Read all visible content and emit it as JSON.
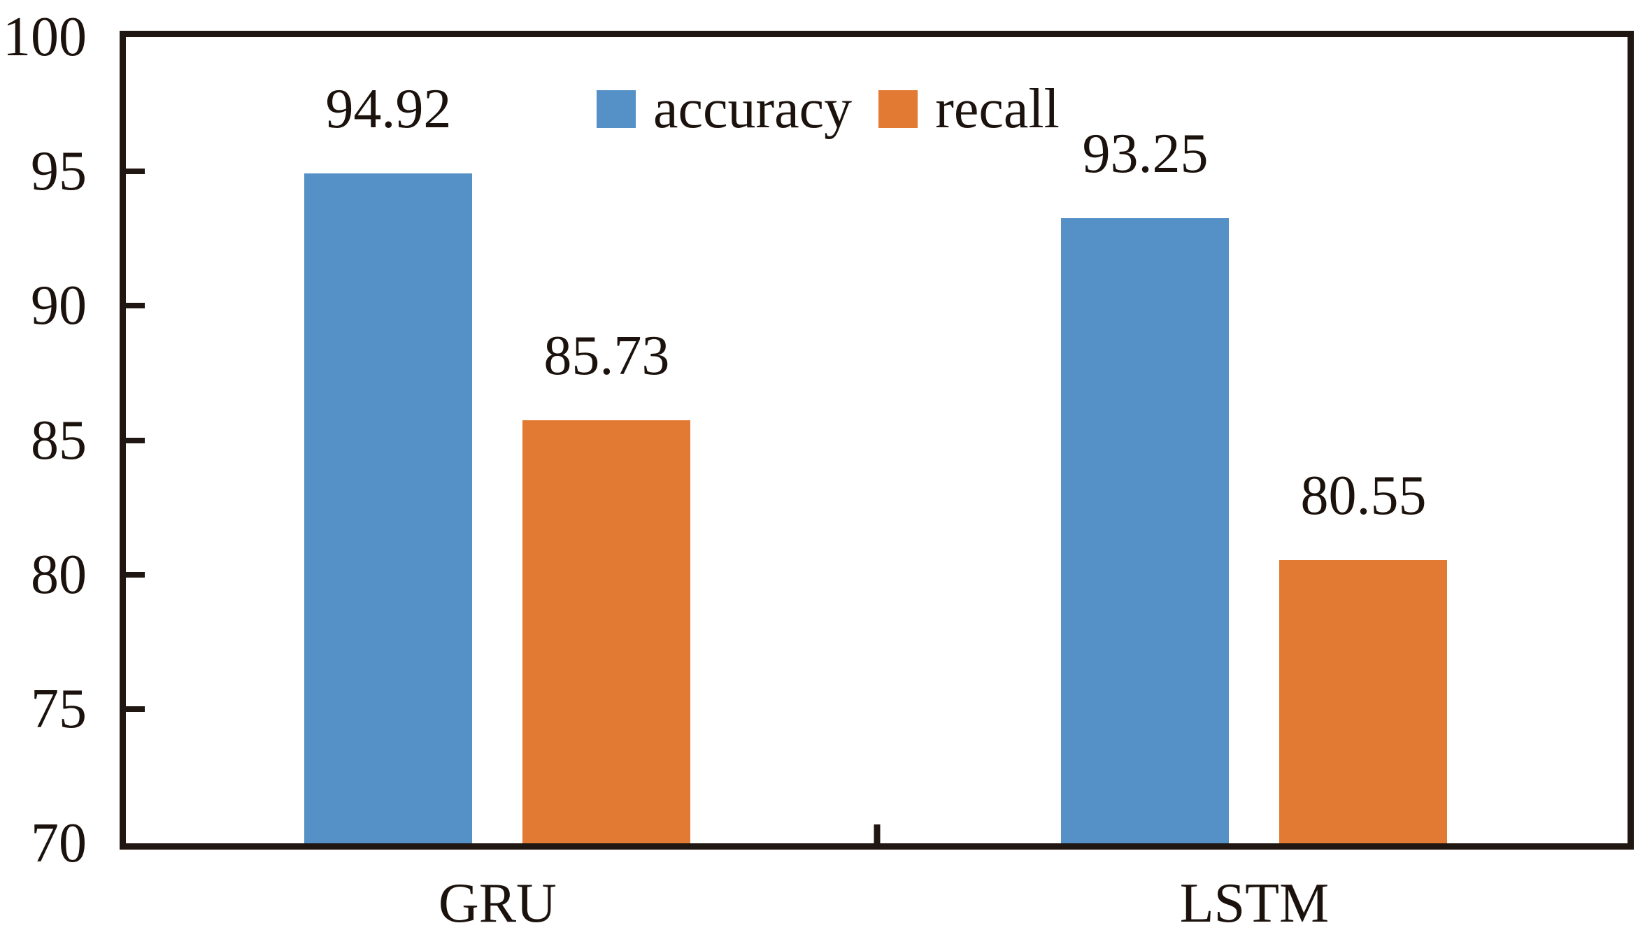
{
  "chart_data": {
    "type": "bar",
    "title": "",
    "categories": [
      "GRU",
      "LSTM"
    ],
    "series": [
      {
        "name": "accuracy",
        "color": "#5590c7",
        "values": [
          94.92,
          93.25
        ],
        "labels": [
          "94.92",
          "93.25"
        ]
      },
      {
        "name": "recall",
        "color": "#e27a33",
        "values": [
          85.73,
          80.55
        ],
        "labels": [
          "85.73",
          "80.55"
        ]
      }
    ],
    "ylim": [
      70,
      100
    ],
    "yticks": [
      100,
      95,
      90,
      85,
      80,
      75,
      70
    ],
    "xlabel": "",
    "ylabel": "",
    "grid": false,
    "legend_position": "top-center",
    "axis_color": "#201612",
    "text_color": "#1b120d",
    "background": "#ffffff"
  }
}
